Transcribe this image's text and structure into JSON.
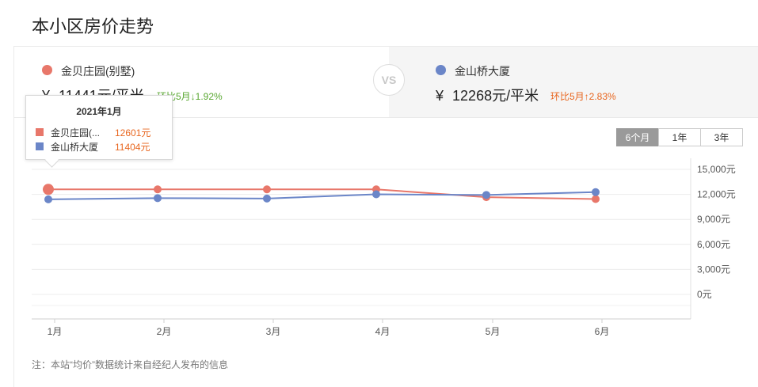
{
  "page_title": "本小区房价走势",
  "left": {
    "name": "金贝庄园(别墅)",
    "price_prefix": "¥",
    "price": "11441元/平米",
    "change": "环比5月↓1.92%",
    "color": "#e8776a",
    "change_color": "#5aa832"
  },
  "right": {
    "name": "金山桥大厦",
    "price_prefix": "¥",
    "price": "12268元/平米",
    "change": "环比5月↑2.83%",
    "color": "#6b86c8",
    "change_color": "#e8661f"
  },
  "vs": "VS",
  "range_tabs": [
    {
      "label": "6个月",
      "active": true
    },
    {
      "label": "1年",
      "active": false
    },
    {
      "label": "3年",
      "active": false
    }
  ],
  "tooltip": {
    "title": "2021年1月",
    "rows": [
      {
        "name": "金贝庄园(...",
        "value": "12601元"
      },
      {
        "name": "金山桥大厦",
        "value": "11404元"
      }
    ]
  },
  "chart_data": {
    "type": "line",
    "categories": [
      "1月",
      "2月",
      "3月",
      "4月",
      "5月",
      "6月"
    ],
    "series": [
      {
        "name": "金贝庄园(别墅)",
        "color": "#e8776a",
        "values": [
          12601,
          12601,
          12601,
          12601,
          11665,
          11441
        ]
      },
      {
        "name": "金山桥大厦",
        "color": "#6b86c8",
        "values": [
          11404,
          11550,
          11500,
          12010,
          11930,
          12268
        ]
      }
    ],
    "y_ticks": [
      0,
      3000,
      6000,
      9000,
      12000,
      15000
    ],
    "y_tick_labels": [
      "0元",
      "3,000元",
      "6,000元",
      "9,000元",
      "12,000元",
      "15,000元"
    ],
    "ylim": [
      0,
      15000
    ],
    "grid": true,
    "highlight_index": 0
  },
  "footnote": "注：本站“均价”数据统计来自经纪人发布的信息"
}
